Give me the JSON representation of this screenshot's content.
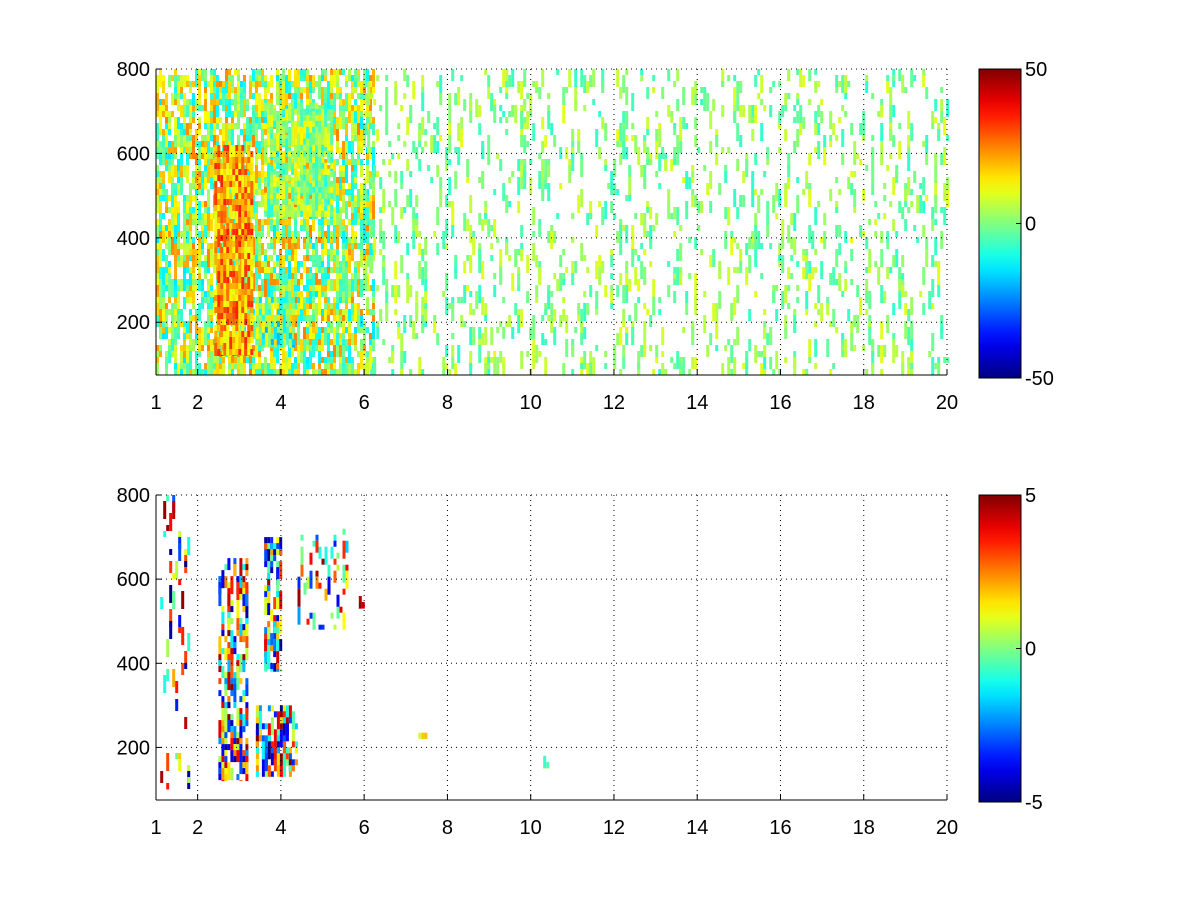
{
  "chart_data": [
    {
      "type": "heatmap",
      "title": "",
      "xlabel": "",
      "ylabel": "",
      "xlim": [
        1,
        20
      ],
      "ylim": [
        75,
        800
      ],
      "xticks": [
        1,
        2,
        4,
        6,
        8,
        10,
        12,
        14,
        16,
        18,
        20
      ],
      "xtick_labels": [
        "1",
        "2",
        "4",
        "6",
        "8",
        "10",
        "12",
        "14",
        "16",
        "18",
        "20"
      ],
      "yticks": [
        200,
        400,
        600,
        800
      ],
      "ytick_labels": [
        "200",
        "400",
        "600",
        "800"
      ],
      "grid": true,
      "grid_style": "dotted",
      "colormap": "jet",
      "clim": [
        -50,
        50
      ],
      "colorbar_ticks": [
        -50,
        0,
        50
      ],
      "colorbar_tick_labels": [
        "-50",
        "0",
        "50"
      ],
      "x_gridlines": [
        2,
        4,
        6,
        8,
        10,
        12,
        14,
        16,
        18
      ],
      "y_gridlines": [
        200,
        400,
        600
      ],
      "features": [
        {
          "x": [
            1.0,
            6.2
          ],
          "y": [
            75,
            800
          ],
          "value_range": [
            -15,
            25
          ],
          "density": 0.55
        },
        {
          "x": [
            2.4,
            3.3
          ],
          "y": [
            120,
            620
          ],
          "value_range": [
            10,
            35
          ],
          "density": 0.8
        },
        {
          "x": [
            3.4,
            4.3
          ],
          "y": [
            140,
            260
          ],
          "value_range": [
            -20,
            20
          ],
          "density": 0.75
        },
        {
          "x": [
            3.6,
            5.2
          ],
          "y": [
            450,
            720
          ],
          "value_range": [
            -10,
            15
          ],
          "density": 0.6
        },
        {
          "x": [
            6.0,
            20.0
          ],
          "y": [
            75,
            800
          ],
          "value_range": [
            -8,
            10
          ],
          "density": 0.13
        }
      ]
    },
    {
      "type": "heatmap",
      "title": "",
      "xlabel": "",
      "ylabel": "",
      "xlim": [
        1,
        20
      ],
      "ylim": [
        75,
        800
      ],
      "xticks": [
        1,
        2,
        4,
        6,
        8,
        10,
        12,
        14,
        16,
        18,
        20
      ],
      "xtick_labels": [
        "1",
        "2",
        "4",
        "6",
        "8",
        "10",
        "12",
        "14",
        "16",
        "18",
        "20"
      ],
      "yticks": [
        200,
        400,
        600,
        800
      ],
      "ytick_labels": [
        "200",
        "400",
        "600",
        "800"
      ],
      "grid": true,
      "grid_style": "dotted",
      "colormap": "jet",
      "clim": [
        -5,
        5
      ],
      "colorbar_ticks": [
        -5,
        0,
        5
      ],
      "colorbar_tick_labels": [
        "-5",
        "0",
        "5"
      ],
      "x_gridlines": [
        2,
        4,
        6,
        8,
        10,
        12,
        14,
        16,
        18
      ],
      "y_gridlines": [
        200,
        400,
        600
      ],
      "features": [
        {
          "x": [
            1.1,
            1.8
          ],
          "y": [
            100,
            800
          ],
          "value_range": [
            -5,
            5
          ],
          "density": 0.08
        },
        {
          "x": [
            2.5,
            3.2
          ],
          "y": [
            120,
            650
          ],
          "value_range": [
            -5,
            5
          ],
          "density": 0.45
        },
        {
          "x": [
            3.4,
            4.4
          ],
          "y": [
            130,
            300
          ],
          "value_range": [
            -5,
            5
          ],
          "density": 0.5
        },
        {
          "x": [
            3.6,
            4.0
          ],
          "y": [
            380,
            700
          ],
          "value_range": [
            -5,
            5
          ],
          "density": 0.45
        },
        {
          "x": [
            4.4,
            5.6
          ],
          "y": [
            480,
            720
          ],
          "value_range": [
            -4,
            5
          ],
          "density": 0.2
        },
        {
          "x": [
            5.8,
            6.0
          ],
          "y": [
            530,
            560
          ],
          "value_range": [
            3,
            5
          ],
          "density": 0.5
        },
        {
          "x": [
            7.3,
            7.5
          ],
          "y": [
            220,
            235
          ],
          "value_range": [
            0,
            2
          ],
          "density": 0.5
        },
        {
          "x": [
            10.3,
            10.4
          ],
          "y": [
            150,
            180
          ],
          "value_range": [
            -1,
            1
          ],
          "density": 0.5
        }
      ]
    }
  ]
}
